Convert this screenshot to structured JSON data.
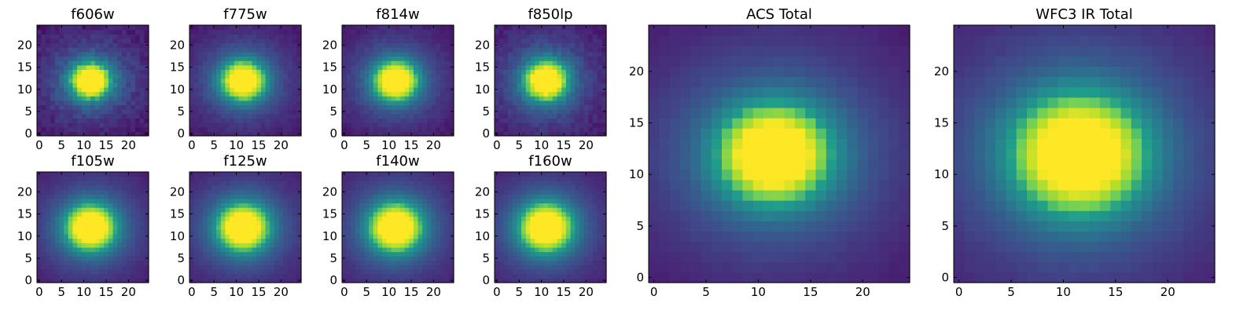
{
  "chart_data": [
    {
      "type": "heatmap",
      "title": "f606w",
      "center": [
        11.5,
        12.0
      ],
      "sigma": [
        3.0,
        2.7
      ],
      "background": 0.06,
      "noise": 0.1,
      "xticks": [
        0,
        5,
        10,
        15,
        20
      ],
      "yticks": [
        0,
        5,
        10,
        15,
        20
      ],
      "grid": 25
    },
    {
      "type": "heatmap",
      "title": "f775w",
      "center": [
        11.5,
        12.0
      ],
      "sigma": [
        3.3,
        3.0
      ],
      "background": 0.05,
      "noise": 0.05,
      "xticks": [
        0,
        5,
        10,
        15,
        20
      ],
      "yticks": [
        0,
        5,
        10,
        15,
        20
      ],
      "grid": 25
    },
    {
      "type": "heatmap",
      "title": "f814w",
      "center": [
        11.5,
        12.0
      ],
      "sigma": [
        3.3,
        3.0
      ],
      "background": 0.05,
      "noise": 0.05,
      "xticks": [
        0,
        5,
        10,
        15,
        20
      ],
      "yticks": [
        0,
        5,
        10,
        15,
        20
      ],
      "grid": 25
    },
    {
      "type": "heatmap",
      "title": "f850lp",
      "center": [
        11.0,
        12.0
      ],
      "sigma": [
        3.2,
        3.0
      ],
      "background": 0.06,
      "noise": 0.08,
      "xticks": [
        0,
        5,
        10,
        15,
        20
      ],
      "yticks": [
        0,
        5,
        10,
        15,
        20
      ],
      "grid": 25
    },
    {
      "type": "heatmap",
      "title": "f105w",
      "center": [
        11.5,
        12.0
      ],
      "sigma": [
        3.8,
        3.5
      ],
      "background": 0.05,
      "noise": 0.03,
      "xticks": [
        0,
        5,
        10,
        15,
        20
      ],
      "yticks": [
        0,
        5,
        10,
        15,
        20
      ],
      "grid": 25
    },
    {
      "type": "heatmap",
      "title": "f125w",
      "center": [
        11.5,
        12.0
      ],
      "sigma": [
        3.9,
        3.6
      ],
      "background": 0.05,
      "noise": 0.03,
      "xticks": [
        0,
        5,
        10,
        15,
        20
      ],
      "yticks": [
        0,
        5,
        10,
        15,
        20
      ],
      "grid": 25
    },
    {
      "type": "heatmap",
      "title": "f140w",
      "center": [
        11.5,
        12.0
      ],
      "sigma": [
        4.0,
        3.7
      ],
      "background": 0.05,
      "noise": 0.03,
      "xticks": [
        0,
        5,
        10,
        15,
        20
      ],
      "yticks": [
        0,
        5,
        10,
        15,
        20
      ],
      "grid": 25
    },
    {
      "type": "heatmap",
      "title": "f160w",
      "center": [
        11.0,
        12.0
      ],
      "sigma": [
        4.0,
        3.7
      ],
      "background": 0.05,
      "noise": 0.03,
      "xticks": [
        0,
        5,
        10,
        15,
        20
      ],
      "yticks": [
        0,
        5,
        10,
        15,
        20
      ],
      "grid": 25
    },
    {
      "type": "heatmap",
      "title": "ACS Total",
      "center": [
        11.5,
        12.0
      ],
      "sigma": [
        3.6,
        3.2
      ],
      "background": 0.06,
      "noise": 0.02,
      "xticks": [
        0,
        5,
        10,
        15,
        20
      ],
      "yticks": [
        0,
        5,
        10,
        15,
        20
      ],
      "grid": 25
    },
    {
      "type": "heatmap",
      "title": "WFC3 IR Total",
      "center": [
        11.5,
        12.0
      ],
      "sigma": [
        4.3,
        3.9
      ],
      "background": 0.05,
      "noise": 0.02,
      "xticks": [
        0,
        5,
        10,
        15,
        20
      ],
      "yticks": [
        0,
        5,
        10,
        15,
        20
      ],
      "grid": 25
    }
  ],
  "colormap": [
    "#440154",
    "#482777",
    "#3f4a8a",
    "#31678e",
    "#26838f",
    "#1f9d8a",
    "#6cce5a",
    "#b6de2b",
    "#fee825"
  ]
}
